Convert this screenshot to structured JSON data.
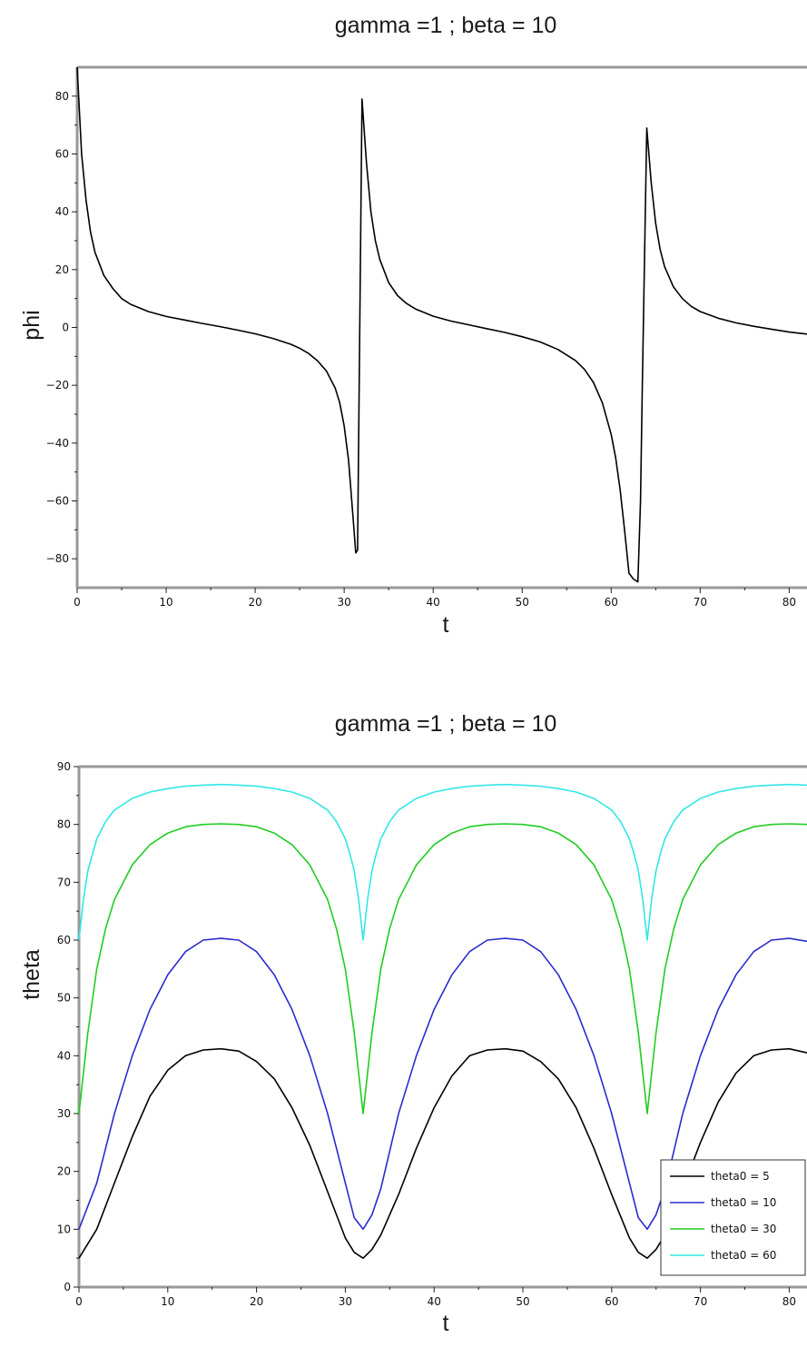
{
  "chart_data": [
    {
      "type": "line",
      "title": "gamma =1 ; beta = 10",
      "xlabel": "t",
      "ylabel": "phi",
      "xlim": [
        0,
        82
      ],
      "ylim": [
        -90,
        90
      ],
      "xticks": [
        0,
        10,
        20,
        30,
        40,
        50,
        60,
        70,
        80
      ],
      "yticks": [
        -80,
        -60,
        -40,
        -20,
        0,
        20,
        40,
        60,
        80
      ],
      "grid": false,
      "series": [
        {
          "color": "#000000",
          "x": [
            0,
            0.5,
            1,
            1.5,
            2,
            3,
            4,
            5,
            6,
            8,
            10,
            12,
            14,
            16,
            18,
            20,
            22,
            24,
            25,
            26,
            27,
            28,
            29,
            29.5,
            30,
            30.5,
            31,
            31.3,
            31.5,
            32,
            32.5,
            33,
            33.5,
            34,
            35,
            36,
            37,
            38,
            40,
            42,
            44,
            46,
            48,
            50,
            52,
            54,
            56,
            57,
            58,
            59,
            60,
            60.5,
            61,
            61.5,
            62,
            62.5,
            63,
            63.3,
            63.5,
            64,
            64.5,
            65,
            65.5,
            66,
            67,
            68,
            69,
            70,
            72,
            74,
            76,
            78,
            80,
            82
          ],
          "y": [
            90,
            60,
            44,
            33,
            26,
            18,
            13.5,
            10,
            8,
            5.5,
            3.8,
            2.6,
            1.4,
            0.3,
            -0.9,
            -2.2,
            -3.8,
            -5.8,
            -7.2,
            -9,
            -11.5,
            -15,
            -21,
            -26,
            -34,
            -46,
            -66,
            -78,
            -77,
            79,
            57,
            40,
            30,
            23.5,
            15.5,
            11,
            8.3,
            6.4,
            3.9,
            2.2,
            0.9,
            -0.4,
            -1.7,
            -3.2,
            -5,
            -7.6,
            -11.5,
            -14.5,
            -19,
            -26,
            -37,
            -45,
            -56,
            -70,
            -85,
            -87,
            -88,
            -60,
            -20,
            69,
            50,
            36,
            27,
            21,
            14,
            10,
            7.3,
            5.5,
            3.2,
            1.6,
            0.4,
            -0.6,
            -1.6,
            -2.3
          ]
        }
      ]
    },
    {
      "type": "line",
      "title": "gamma =1 ; beta = 10",
      "xlabel": "t",
      "ylabel": "theta",
      "xlim": [
        0,
        82
      ],
      "ylim": [
        0,
        90
      ],
      "xticks": [
        0,
        10,
        20,
        30,
        40,
        50,
        60,
        70,
        80
      ],
      "yticks": [
        0,
        10,
        20,
        30,
        40,
        50,
        60,
        70,
        80,
        90
      ],
      "grid": false,
      "legend_position": "bottom-right",
      "series": [
        {
          "name": "theta0 = 5",
          "color": "#000000",
          "x": [
            0,
            2,
            4,
            6,
            8,
            10,
            12,
            14,
            16,
            18,
            20,
            22,
            24,
            26,
            28,
            30,
            31,
            32,
            33,
            34,
            36,
            38,
            40,
            42,
            44,
            46,
            48,
            50,
            52,
            54,
            56,
            58,
            60,
            62,
            63,
            64,
            65,
            66,
            68,
            70,
            72,
            74,
            76,
            78,
            80,
            82
          ],
          "y": [
            5,
            10,
            18,
            26,
            33,
            37.5,
            40,
            41,
            41.2,
            40.8,
            39,
            36,
            31,
            24.5,
            16.5,
            8.5,
            6,
            5,
            6.5,
            9,
            16,
            24,
            31,
            36.5,
            40,
            41,
            41.2,
            40.8,
            39,
            36,
            31,
            24,
            16,
            8.5,
            6,
            5,
            6.5,
            9,
            17,
            25,
            32,
            37,
            40,
            41,
            41.2,
            40.5
          ]
        },
        {
          "name": "theta0 = 10",
          "color": "#2b2bcc",
          "x": [
            0,
            2,
            4,
            6,
            8,
            10,
            12,
            14,
            16,
            18,
            20,
            22,
            24,
            26,
            28,
            30,
            31,
            32,
            33,
            34,
            36,
            38,
            40,
            42,
            44,
            46,
            48,
            50,
            52,
            54,
            56,
            58,
            60,
            62,
            63,
            64,
            65,
            66,
            68,
            70,
            72,
            74,
            76,
            78,
            80,
            82
          ],
          "y": [
            10,
            18,
            30,
            40,
            48,
            54,
            58,
            60,
            60.3,
            60,
            58,
            54,
            48,
            40,
            30,
            18,
            12,
            10,
            12.5,
            17,
            30,
            40,
            48,
            54,
            58,
            60,
            60.3,
            60,
            58,
            54,
            48,
            40,
            30,
            18,
            12,
            10,
            12.5,
            17,
            30,
            40,
            48,
            54,
            58,
            60,
            60.3,
            59.8
          ]
        },
        {
          "name": "theta0 = 30",
          "color": "#22cc22",
          "x": [
            0,
            1,
            2,
            3,
            4,
            6,
            8,
            10,
            12,
            14,
            16,
            18,
            20,
            22,
            24,
            26,
            28,
            29,
            30,
            31,
            32,
            33,
            34,
            35,
            36,
            38,
            40,
            42,
            44,
            46,
            48,
            50,
            52,
            54,
            56,
            58,
            60,
            61,
            62,
            63,
            64,
            65,
            66,
            67,
            68,
            70,
            72,
            74,
            76,
            78,
            80,
            82
          ],
          "y": [
            30,
            44,
            55,
            62,
            67,
            73,
            76.5,
            78.5,
            79.6,
            80,
            80.1,
            80,
            79.6,
            78.5,
            76.5,
            73,
            67,
            62,
            55,
            44,
            30,
            44,
            55,
            62,
            67,
            73,
            76.5,
            78.5,
            79.6,
            80,
            80.1,
            80,
            79.6,
            78.5,
            76.5,
            73,
            67,
            62,
            55,
            44,
            30,
            44,
            55,
            62,
            67,
            73,
            76.5,
            78.5,
            79.6,
            80,
            80.1,
            80
          ]
        },
        {
          "name": "theta0 = 60",
          "color": "#33e6e6",
          "x": [
            0,
            0.5,
            1,
            2,
            3,
            4,
            6,
            8,
            10,
            12,
            14,
            16,
            18,
            20,
            22,
            24,
            26,
            28,
            29,
            30,
            30.5,
            31,
            31.5,
            32,
            32.5,
            33,
            33.5,
            34,
            35,
            36,
            38,
            40,
            42,
            44,
            46,
            48,
            50,
            52,
            54,
            56,
            58,
            60,
            61,
            62,
            62.5,
            63,
            63.5,
            64,
            64.5,
            65,
            65.5,
            66,
            67,
            68,
            70,
            72,
            74,
            76,
            78,
            80,
            82
          ],
          "y": [
            60,
            67,
            72,
            77.5,
            80.5,
            82.5,
            84.5,
            85.6,
            86.2,
            86.6,
            86.8,
            86.9,
            86.8,
            86.6,
            86.2,
            85.6,
            84.5,
            82.5,
            80.5,
            77.5,
            75,
            72,
            67,
            60,
            67,
            72,
            75,
            77.5,
            80.5,
            82.5,
            84.5,
            85.6,
            86.2,
            86.6,
            86.8,
            86.9,
            86.8,
            86.6,
            86.2,
            85.6,
            84.5,
            82.5,
            80.5,
            77.5,
            75,
            72,
            67,
            60,
            67,
            72,
            75,
            77.5,
            80.5,
            82.5,
            84.5,
            85.6,
            86.2,
            86.6,
            86.8,
            86.9,
            86.8
          ]
        }
      ]
    }
  ]
}
